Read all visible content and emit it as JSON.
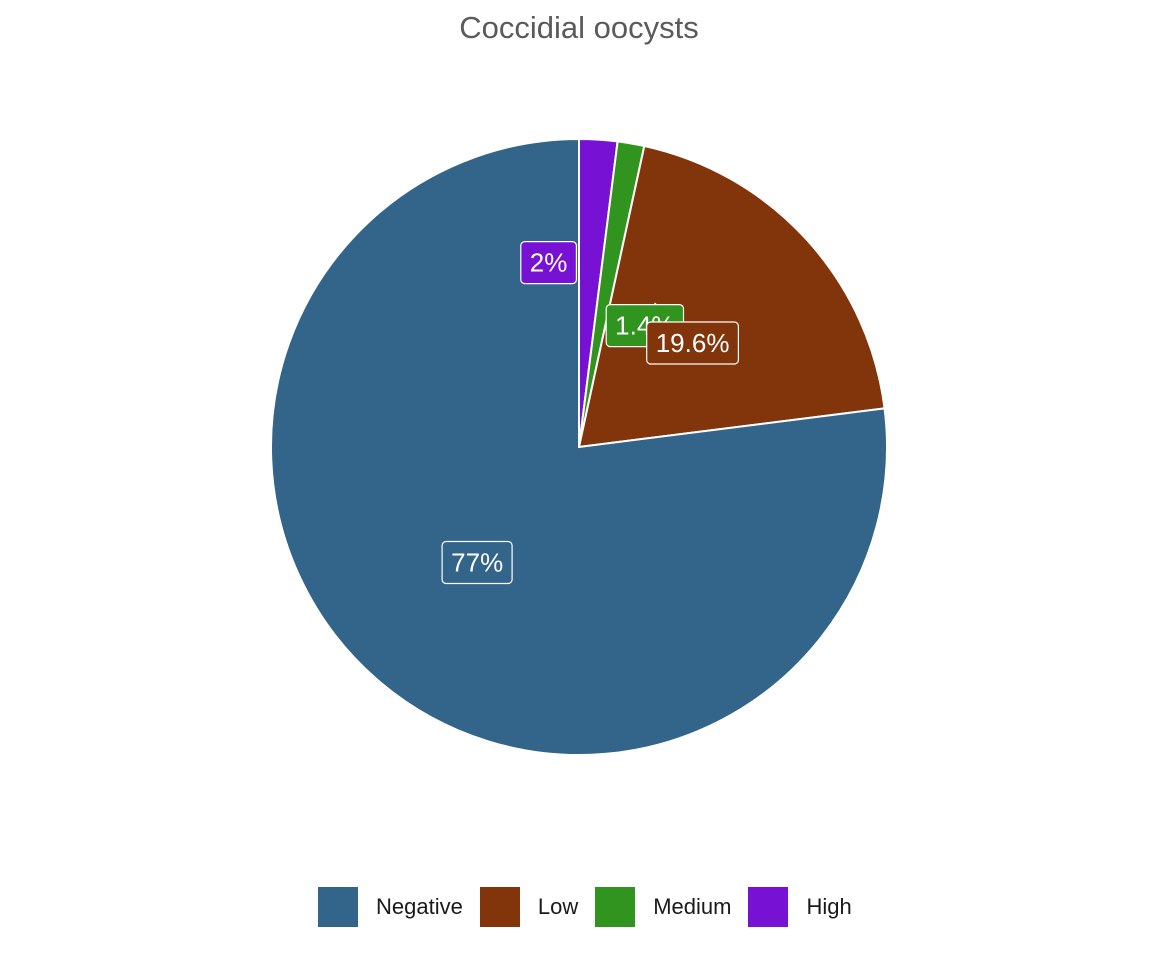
{
  "chart_data": {
    "type": "pie",
    "title": "Coccidial oocysts",
    "categories": [
      "Negative",
      "Low",
      "Medium",
      "High"
    ],
    "values": [
      77,
      19.6,
      1.4,
      2
    ],
    "labels": [
      "77%",
      "19.6%",
      "1.4%",
      "2%"
    ],
    "colors": [
      "#336489",
      "#82340a",
      "#31941e",
      "#7711d4"
    ],
    "start_angle_deg": 0,
    "direction": "clockwise_from_top",
    "slice_order_clockwise": [
      "High",
      "Medium",
      "Low",
      "Negative"
    ],
    "legend_position": "bottom"
  }
}
